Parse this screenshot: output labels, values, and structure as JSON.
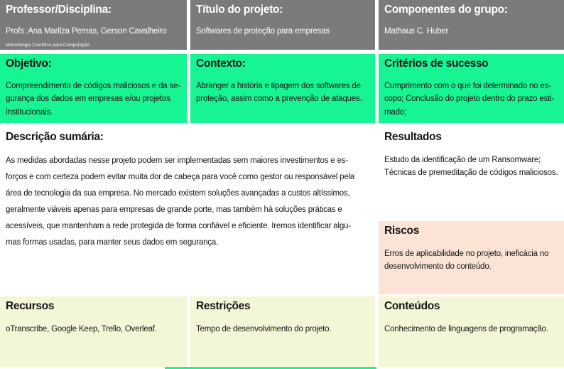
{
  "palette": {
    "header_bg": "#7b7b7b",
    "accent_green": "#17f493",
    "risk_bg": "#fbe4d5",
    "bottom_bg": "#f4f6d8",
    "header_text": "#ffffff",
    "body_text": "#1d1d1d"
  },
  "cells": {
    "professor": {
      "title": "Professor/Disciplina:",
      "body": "Profs. Ana Marilza Pernas, Gerson Cavalheiro",
      "subtitle": "Metodologia Científica para Computação"
    },
    "titulo_projeto": {
      "title": "Título do projeto:",
      "body": "Softwares de proteção para empresas"
    },
    "componentes": {
      "title": "Componentes do grupo:",
      "body": "Mathaus C. Huber"
    },
    "objetivo": {
      "title": "Objetivo:",
      "body": "Compreendimento de códigos maliciosos e da se-\ngurança dos dados em empresas e/ou projetos\ninstitucionais."
    },
    "contexto": {
      "title": "Contexto:",
      "body": "Abranger a história e tipagem dos softwares de\nproteção, assim como a prevenção de ataques."
    },
    "criterios_sucesso": {
      "title": "Critérios de sucesso",
      "body": "Cumprimento com o que foi determinado no es-\ncopo; Conclusão do projeto dentro do prazo esti-\nmado;"
    },
    "descricao_sumaria": {
      "title": "Descrição sumária:",
      "body": "As medidas abordadas nesse projeto podem ser implementadas sem maiores investimentos e es-\nforços e com certeza podem evitar muita dor de cabeça para você como gestor ou responsável pela\nárea de tecnologia da sua empresa. No mercado existem soluções avançadas a custos altíssimos,\ngeralmente viáveis apenas para empresas de grande porte, mas também há soluções práticas e\nacessíveis, que mantenham a rede protegida de forma confiável e eficiente. Iremos identificar algu-\nmas formas usadas, para manter seus dados em segurança."
    },
    "resultados": {
      "title": "Resultados",
      "body": "Estudo da identificação de um Ransomware;\nTécnicas de premeditação de códigos maliciosos."
    },
    "riscos": {
      "title": "Riscos",
      "body": "Erros de aplicabilidade no projeto, ineficácia no\ndesenvolvimento do conteúdo."
    },
    "recursos": {
      "title": "Recursos",
      "body": "oTranscribe, Google Keep, Trello, Overleaf."
    },
    "restricoes": {
      "title": "Restrições",
      "body": "Tempo de desenvolvimento do projeto."
    },
    "conteudos": {
      "title": "Conteúdos",
      "body": "Conhecimento de linguagens de programação."
    }
  }
}
